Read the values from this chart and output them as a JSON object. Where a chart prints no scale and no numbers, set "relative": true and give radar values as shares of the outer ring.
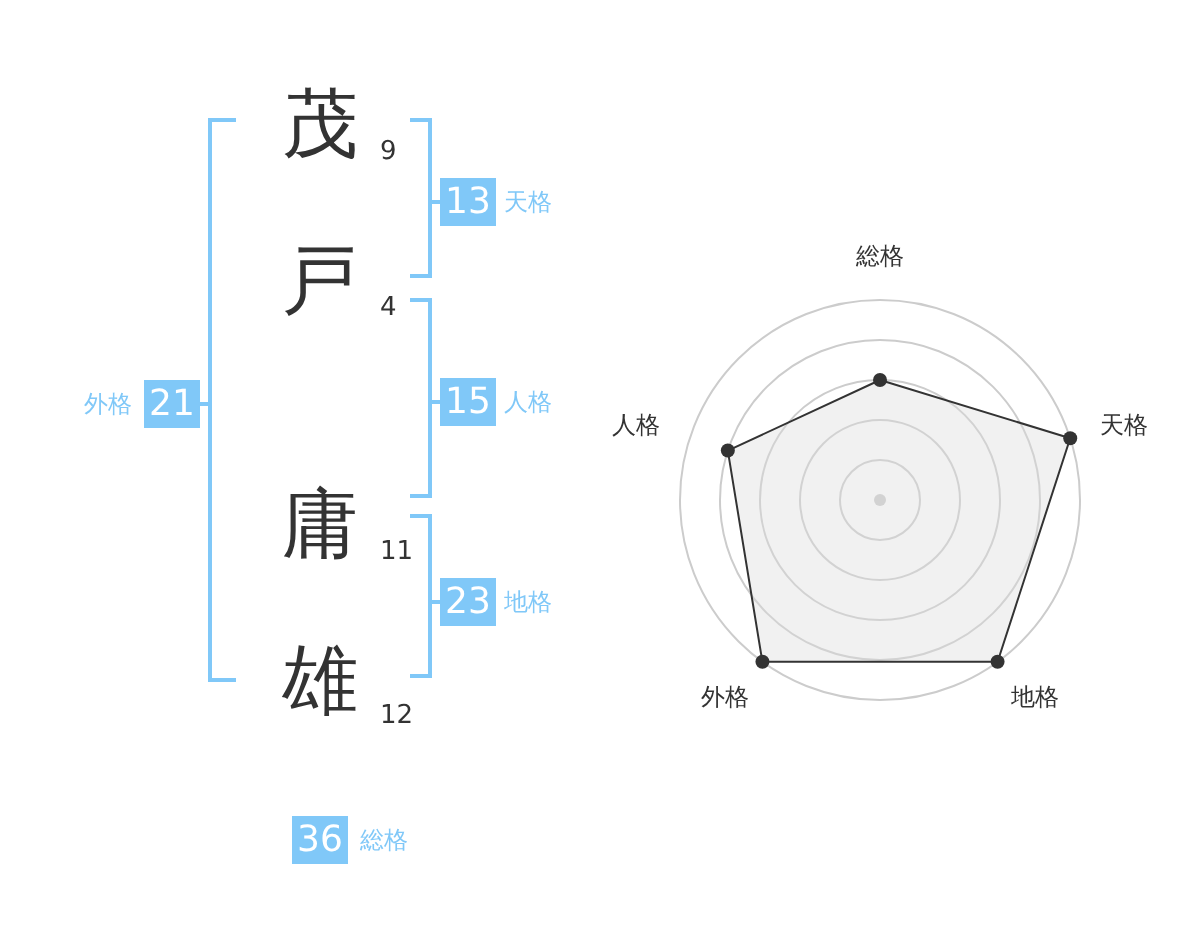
{
  "chart_data": [
    {
      "type": "other",
      "annotations": [
        "茂",
        "9",
        "戸",
        "4",
        "庸",
        "11",
        "雄",
        "12",
        "13",
        "天格",
        "15",
        "人格",
        "23",
        "地格",
        "21",
        "外格",
        "36",
        "総格"
      ]
    },
    {
      "type": "radar",
      "categories": [
        "総格",
        "天格",
        "地格",
        "外格",
        "人格"
      ],
      "relative": true,
      "grid": true,
      "marker": "circle",
      "series": [
        {
          "color": "#333333",
          "values": [
            0.6,
            1,
            1,
            1,
            0.8
          ]
        }
      ]
    }
  ]
}
